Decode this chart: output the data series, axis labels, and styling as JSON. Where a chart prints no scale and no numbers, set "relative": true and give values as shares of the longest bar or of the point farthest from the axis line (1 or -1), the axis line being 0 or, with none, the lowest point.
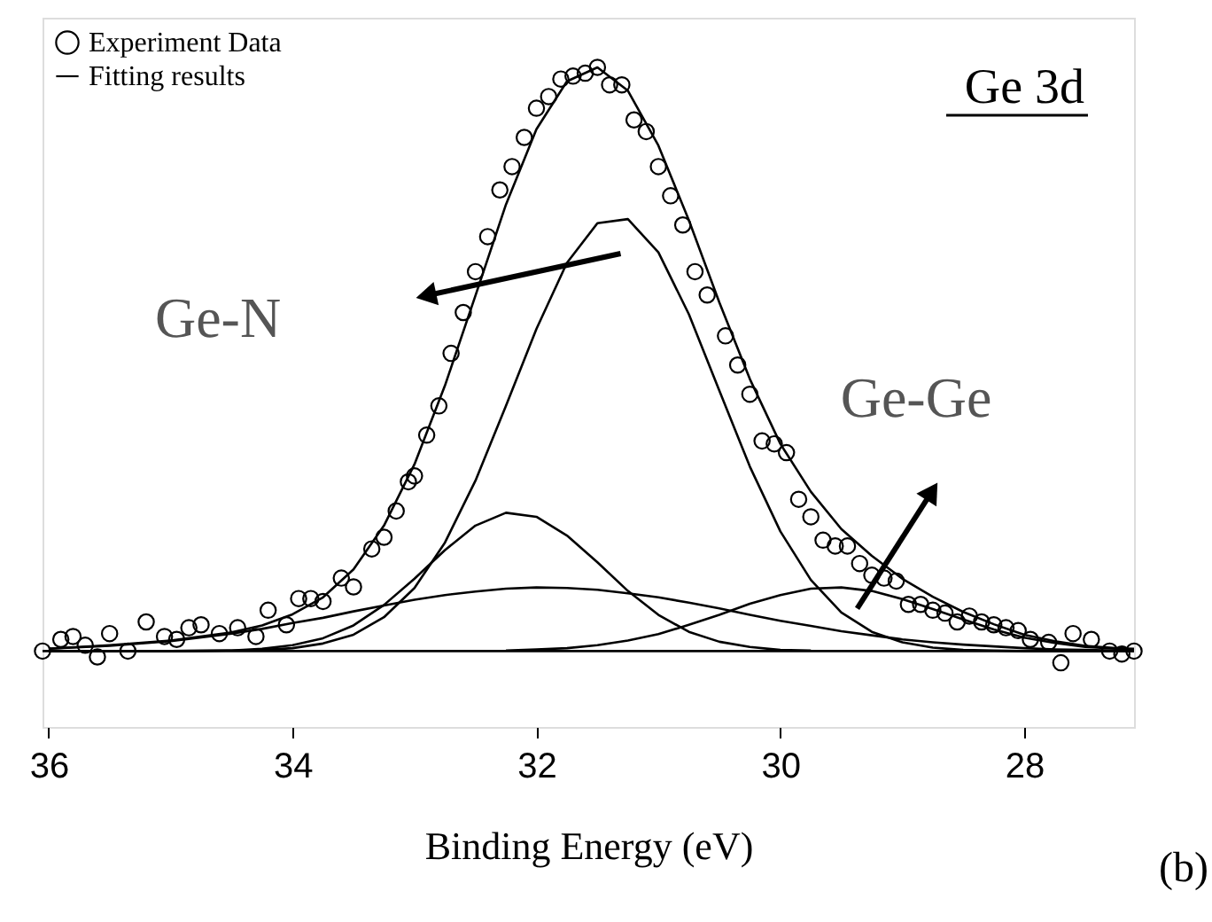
{
  "chart_data": {
    "type": "line",
    "relative": true,
    "xlabel": "Binding Energy (eV)",
    "xlim": [
      36.05,
      27.1
    ],
    "xticks": [
      36,
      34,
      32,
      30,
      28
    ],
    "grid": false,
    "legend": "top left",
    "annotations": [
      "Ge 3d",
      "(b)",
      "Ge-N",
      "Ge-Ge"
    ],
    "ref_lines": [
      {
        "axis": "y",
        "value": 0,
        "color": "#000000"
      }
    ],
    "series": [
      {
        "name": "Experiment Data",
        "type": "scatter",
        "marker": "circle",
        "color": "#000000",
        "x": [
          36.05,
          35.9,
          35.8,
          35.7,
          35.6,
          35.5,
          35.35,
          35.2,
          35.05,
          34.95,
          34.85,
          34.75,
          34.6,
          34.45,
          34.3,
          34.2,
          34.05,
          33.95,
          33.85,
          33.75,
          33.6,
          33.5,
          33.35,
          33.25,
          33.15,
          33.05,
          33.0,
          32.9,
          32.8,
          32.7,
          32.6,
          32.5,
          32.4,
          32.3,
          32.2,
          32.1,
          32.0,
          31.9,
          31.8,
          31.7,
          31.6,
          31.5,
          31.4,
          31.3,
          31.2,
          31.1,
          31.0,
          30.9,
          30.8,
          30.7,
          30.6,
          30.45,
          30.35,
          30.25,
          30.15,
          30.05,
          29.95,
          29.85,
          29.75,
          29.65,
          29.55,
          29.45,
          29.35,
          29.25,
          29.15,
          29.05,
          28.95,
          28.85,
          28.75,
          28.65,
          28.55,
          28.45,
          28.35,
          28.25,
          28.15,
          28.05,
          27.95,
          27.8,
          27.7,
          27.6,
          27.45,
          27.3,
          27.2,
          27.1
        ],
        "values": [
          0.0,
          0.02,
          0.025,
          0.01,
          -0.01,
          0.03,
          0.0,
          0.05,
          0.025,
          0.02,
          0.04,
          0.045,
          0.03,
          0.04,
          0.025,
          0.07,
          0.045,
          0.09,
          0.09,
          0.085,
          0.125,
          0.11,
          0.175,
          0.195,
          0.24,
          0.29,
          0.3,
          0.37,
          0.42,
          0.51,
          0.58,
          0.65,
          0.71,
          0.79,
          0.83,
          0.88,
          0.93,
          0.95,
          0.98,
          0.985,
          0.99,
          1.0,
          0.97,
          0.97,
          0.91,
          0.89,
          0.83,
          0.78,
          0.73,
          0.65,
          0.61,
          0.54,
          0.49,
          0.44,
          0.36,
          0.355,
          0.34,
          0.26,
          0.23,
          0.19,
          0.18,
          0.18,
          0.15,
          0.13,
          0.125,
          0.12,
          0.08,
          0.08,
          0.07,
          0.065,
          0.05,
          0.06,
          0.05,
          0.045,
          0.04,
          0.035,
          0.02,
          0.015,
          -0.02,
          0.03,
          0.02,
          0.0,
          -0.005,
          0.0
        ]
      },
      {
        "name": "Fitting results",
        "type": "line",
        "color": "#000000",
        "x": [
          36,
          35.5,
          35,
          34.5,
          34.25,
          34,
          33.75,
          33.5,
          33.25,
          33,
          32.75,
          32.5,
          32.25,
          32,
          31.75,
          31.5,
          31.25,
          31,
          30.75,
          30.5,
          30.25,
          30,
          29.75,
          29.5,
          29.25,
          29,
          28.75,
          28.5,
          28.25,
          28,
          27.75,
          27.5,
          27.25,
          27.1
        ],
        "values": [
          0.004,
          0.01,
          0.018,
          0.032,
          0.044,
          0.063,
          0.092,
          0.14,
          0.215,
          0.32,
          0.455,
          0.609,
          0.765,
          0.894,
          0.976,
          1.0,
          0.96,
          0.866,
          0.738,
          0.597,
          0.466,
          0.355,
          0.273,
          0.209,
          0.163,
          0.124,
          0.093,
          0.067,
          0.046,
          0.028,
          0.017,
          0.009,
          0.005,
          0.004
        ]
      },
      {
        "type": "line",
        "color": "#000000",
        "x": [
          36,
          35.5,
          35,
          34.5,
          34.25,
          34,
          33.75,
          33.5,
          33.25,
          33,
          32.75,
          32.5,
          32.25,
          32,
          31.75,
          31.5,
          31.25,
          31,
          30.75,
          30.5,
          30.25,
          30,
          29.75,
          29.5,
          29.25,
          29,
          28.75,
          28.5,
          28.25,
          28,
          27.75,
          27.5,
          27.25,
          27.1
        ],
        "values": [
          0,
          0,
          0,
          0.001,
          0.002,
          0.005,
          0.013,
          0.028,
          0.058,
          0.108,
          0.186,
          0.292,
          0.42,
          0.552,
          0.665,
          0.733,
          0.74,
          0.683,
          0.577,
          0.446,
          0.316,
          0.205,
          0.122,
          0.066,
          0.033,
          0.015,
          0.006,
          0.002,
          0.001,
          0,
          0,
          0,
          0,
          0
        ]
      },
      {
        "type": "line",
        "color": "#000000",
        "x": [
          36,
          35.5,
          35,
          34.5,
          34.25,
          34,
          33.75,
          33.5,
          33.25,
          33,
          32.75,
          32.5,
          32.25,
          32,
          31.75,
          31.5,
          31.25,
          31,
          30.75,
          30.5,
          30.25,
          30,
          29.75
        ],
        "values": [
          0,
          0,
          0,
          0.001,
          0.004,
          0.01,
          0.022,
          0.044,
          0.079,
          0.124,
          0.173,
          0.215,
          0.237,
          0.23,
          0.198,
          0.152,
          0.103,
          0.062,
          0.033,
          0.016,
          0.007,
          0.002,
          0.001
        ]
      },
      {
        "type": "line",
        "color": "#000000",
        "x": [
          36,
          35.5,
          35,
          34.5,
          34.25,
          34,
          33.75,
          33.5,
          33.25,
          33,
          32.75,
          32.5,
          32.25,
          32,
          31.75,
          31.5,
          31.25,
          31,
          30.75,
          30.5,
          30.25,
          30,
          29.75,
          29.5,
          29.25,
          29,
          28.75,
          28.5,
          28.25,
          28,
          27.75,
          27.5,
          27.25,
          27.1
        ],
        "values": [
          0.004,
          0.009,
          0.017,
          0.03,
          0.038,
          0.048,
          0.057,
          0.068,
          0.078,
          0.088,
          0.096,
          0.102,
          0.107,
          0.109,
          0.108,
          0.105,
          0.099,
          0.092,
          0.083,
          0.073,
          0.062,
          0.052,
          0.043,
          0.034,
          0.027,
          0.02,
          0.015,
          0.011,
          0.008,
          0.005,
          0.003,
          0.002,
          0.001,
          0.001
        ]
      },
      {
        "type": "line",
        "color": "#000000",
        "x": [
          32.25,
          32,
          31.75,
          31.5,
          31.25,
          31,
          30.75,
          30.5,
          30.25,
          30,
          29.75,
          29.5,
          29.25,
          29,
          28.75,
          28.5,
          28.25,
          28,
          27.75,
          27.5,
          27.25,
          27.1
        ],
        "values": [
          0.001,
          0.003,
          0.005,
          0.01,
          0.018,
          0.029,
          0.045,
          0.062,
          0.081,
          0.096,
          0.107,
          0.109,
          0.103,
          0.089,
          0.072,
          0.054,
          0.037,
          0.023,
          0.014,
          0.007,
          0.004,
          0.003
        ]
      }
    ]
  }
}
